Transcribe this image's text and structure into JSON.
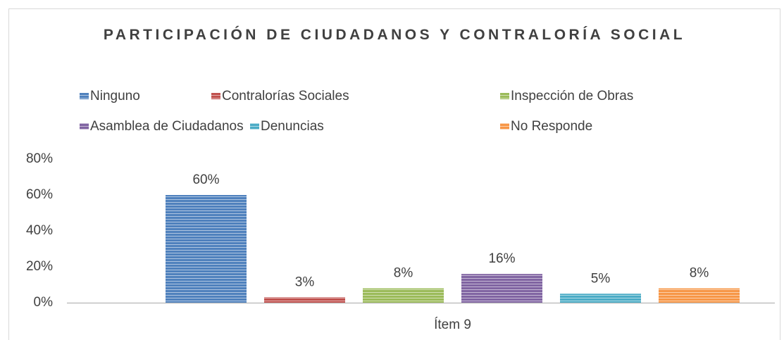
{
  "chart_data": {
    "type": "bar",
    "title": "PARTICIPACIÓN DE CIUDADANOS Y CONTRALORÍA SOCIAL",
    "categories": [
      "Ítem 9"
    ],
    "series": [
      {
        "name": "Ninguno",
        "color": "#4f81bd",
        "values": [
          60
        ],
        "value_labels": [
          "60%"
        ]
      },
      {
        "name": "Contralorías Sociales",
        "color": "#c0504d",
        "values": [
          3
        ],
        "value_labels": [
          "3%"
        ]
      },
      {
        "name": "Inspección de Obras",
        "color": "#9bbb59",
        "values": [
          8
        ],
        "value_labels": [
          "8%"
        ]
      },
      {
        "name": "Asamblea de Ciudadanos",
        "color": "#8064a2",
        "values": [
          16
        ],
        "value_labels": [
          "16%"
        ]
      },
      {
        "name": "Denuncias",
        "color": "#4bacc6",
        "values": [
          5
        ],
        "value_labels": [
          "5%"
        ]
      },
      {
        "name": "No Responde",
        "color": "#f79646",
        "values": [
          8
        ],
        "value_labels": [
          "8%"
        ]
      }
    ],
    "ylim": [
      0,
      80
    ],
    "yticks": [
      {
        "value": 0,
        "label": "0%"
      },
      {
        "value": 20,
        "label": "20%"
      },
      {
        "value": 40,
        "label": "40%"
      },
      {
        "value": 60,
        "label": "60%"
      },
      {
        "value": 80,
        "label": "80%"
      }
    ],
    "grid": false,
    "legend": "top"
  }
}
